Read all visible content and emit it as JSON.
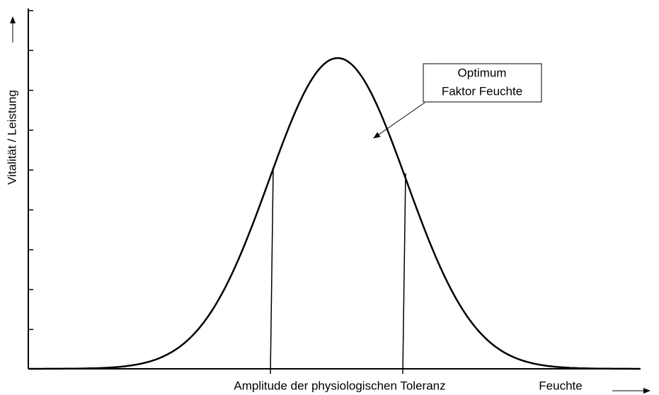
{
  "y_axis_label": "Vitalität / Leistung",
  "annotation": {
    "lines": [
      "Optimum",
      "Faktor Feuchte"
    ]
  },
  "tolerance_label": "Amplitude der physiologischen Toleranz",
  "x_axis_label": "Feuchte"
}
